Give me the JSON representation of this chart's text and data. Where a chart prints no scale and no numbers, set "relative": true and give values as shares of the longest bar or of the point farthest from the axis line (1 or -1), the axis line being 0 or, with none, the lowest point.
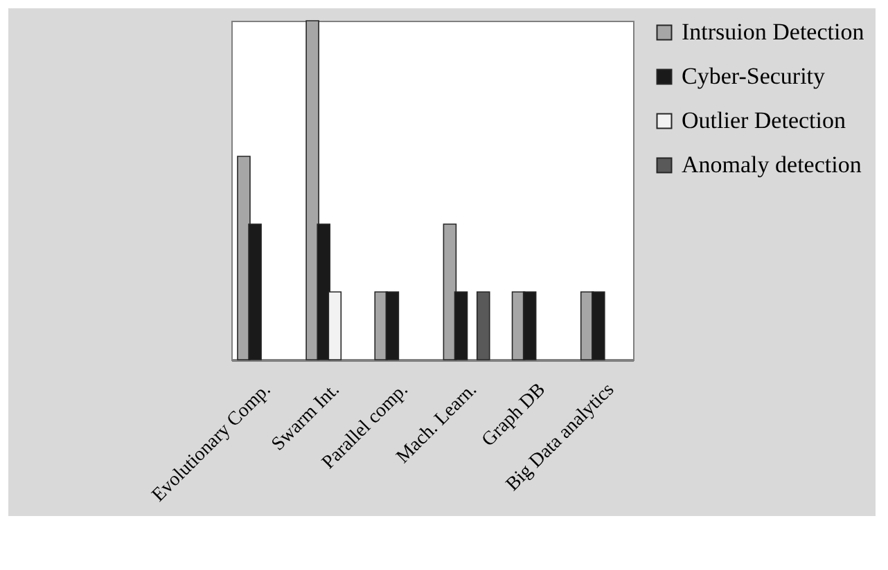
{
  "chart_data": {
    "type": "bar",
    "relative": true,
    "legend": "right",
    "grid": false,
    "categories": [
      "Evolutionary Comp.",
      "Swarm Int.",
      "Parallel comp.",
      "Mach. Learn.",
      "Graph DB",
      "Big Data analytics"
    ],
    "series": [
      {
        "name": "Intrsuion Detection",
        "color": "#a6a6a6",
        "values": [
          0.6,
          1,
          0.2,
          0.4,
          0.2,
          0.2
        ]
      },
      {
        "name": "Cyber-Security",
        "color": "#1a1a1a",
        "values": [
          0.4,
          0.4,
          0.2,
          0.2,
          0.2,
          0.2
        ]
      },
      {
        "name": "Outlier Detection",
        "color": "#f2f2f2",
        "values": [
          null,
          0.2,
          null,
          null,
          null,
          null
        ]
      },
      {
        "name": "Anomaly detection",
        "color": "#595959",
        "values": [
          null,
          null,
          null,
          0.2,
          null,
          null
        ]
      }
    ]
  }
}
